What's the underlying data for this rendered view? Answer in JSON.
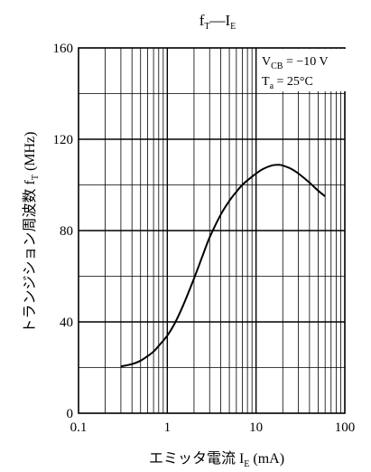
{
  "chart_data": {
    "type": "line",
    "title_main": "f",
    "title_main_sub": "T",
    "title_sep": "—",
    "title_second": "I",
    "title_second_sub": "E",
    "xlabel_text": "エミッタ電流  I",
    "xlabel_sub": "E",
    "xlabel_unit": "  (mA)",
    "ylabel_text": "トランジション周波数  f",
    "ylabel_sub": "T",
    "ylabel_unit": "  (MHz)",
    "x_scale": "log",
    "xlim": [
      0.1,
      100
    ],
    "ylim": [
      0,
      160
    ],
    "x_ticks": [
      "0.1",
      "1",
      "10",
      "100"
    ],
    "y_ticks": [
      "0",
      "40",
      "80",
      "120",
      "160"
    ],
    "y_minor_step": 20,
    "grid": true,
    "conditions": [
      {
        "main": "V",
        "sub": "CB",
        "rest": " = −10 V"
      },
      {
        "main": "T",
        "sub": "a",
        "rest": " = 25°C"
      }
    ],
    "series": [
      {
        "points": [
          {
            "x": 0.3,
            "y": 20.5
          },
          {
            "x": 0.4,
            "y": 21.5
          },
          {
            "x": 0.5,
            "y": 23
          },
          {
            "x": 0.6,
            "y": 25
          },
          {
            "x": 0.7,
            "y": 27
          },
          {
            "x": 0.8,
            "y": 29.5
          },
          {
            "x": 1.0,
            "y": 34
          },
          {
            "x": 1.2,
            "y": 39
          },
          {
            "x": 1.5,
            "y": 47
          },
          {
            "x": 2.0,
            "y": 59
          },
          {
            "x": 2.5,
            "y": 69
          },
          {
            "x": 3.0,
            "y": 77
          },
          {
            "x": 4.0,
            "y": 87
          },
          {
            "x": 5.0,
            "y": 93
          },
          {
            "x": 6.0,
            "y": 97
          },
          {
            "x": 7.0,
            "y": 100
          },
          {
            "x": 8.0,
            "y": 102
          },
          {
            "x": 10.0,
            "y": 105
          },
          {
            "x": 12.0,
            "y": 107
          },
          {
            "x": 15.0,
            "y": 108.5
          },
          {
            "x": 18.0,
            "y": 108.8
          },
          {
            "x": 20.0,
            "y": 108.5
          },
          {
            "x": 25.0,
            "y": 107
          },
          {
            "x": 30.0,
            "y": 105
          },
          {
            "x": 40.0,
            "y": 101
          },
          {
            "x": 50.0,
            "y": 97.5
          },
          {
            "x": 60.0,
            "y": 95
          }
        ]
      }
    ]
  }
}
